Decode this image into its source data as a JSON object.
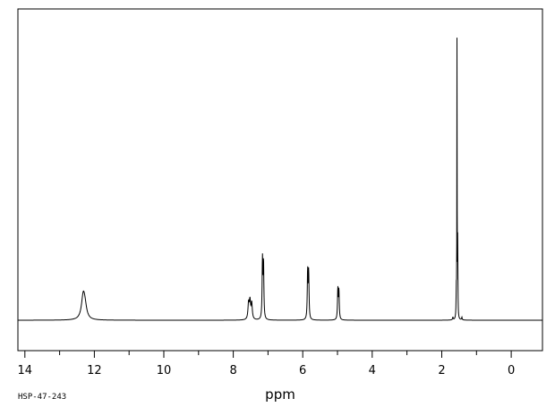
{
  "chart_data": {
    "type": "line",
    "xlabel": "ppm",
    "xlim": [
      14.2,
      -0.9
    ],
    "x_reversed": true,
    "x_ticks": [
      "14",
      "12",
      "10",
      "8",
      "6",
      "4",
      "2",
      "0"
    ],
    "x_tick_values": [
      14,
      12,
      10,
      8,
      6,
      4,
      2,
      0
    ],
    "y_visible": false,
    "grid": false,
    "baseline": 0,
    "peaks": [
      {
        "ppm": 12.32,
        "height": 25,
        "width": 0.06
      },
      {
        "ppm": 12.27,
        "height": 12,
        "width": 0.06
      },
      {
        "ppm": 7.56,
        "height": 18,
        "width": 0.02
      },
      {
        "ppm": 7.52,
        "height": 20,
        "width": 0.02
      },
      {
        "ppm": 7.47,
        "height": 18,
        "width": 0.02
      },
      {
        "ppm": 7.16,
        "height": 66,
        "width": 0.012
      },
      {
        "ppm": 7.13,
        "height": 62,
        "width": 0.012
      },
      {
        "ppm": 5.86,
        "height": 54,
        "width": 0.012
      },
      {
        "ppm": 5.83,
        "height": 52,
        "width": 0.012
      },
      {
        "ppm": 4.99,
        "height": 34,
        "width": 0.012
      },
      {
        "ppm": 4.96,
        "height": 32,
        "width": 0.012
      },
      {
        "ppm": 1.58,
        "height": 30,
        "width": 0.008
      },
      {
        "ppm": 1.56,
        "height": 318,
        "width": 0.004
      },
      {
        "ppm": 1.54,
        "height": 88,
        "width": 0.006
      },
      {
        "ppm": 1.68,
        "height": 3,
        "width": 0.01
      },
      {
        "ppm": 1.42,
        "height": 3,
        "width": 0.01
      }
    ]
  },
  "footer": {
    "code": "HSP-47-243"
  }
}
